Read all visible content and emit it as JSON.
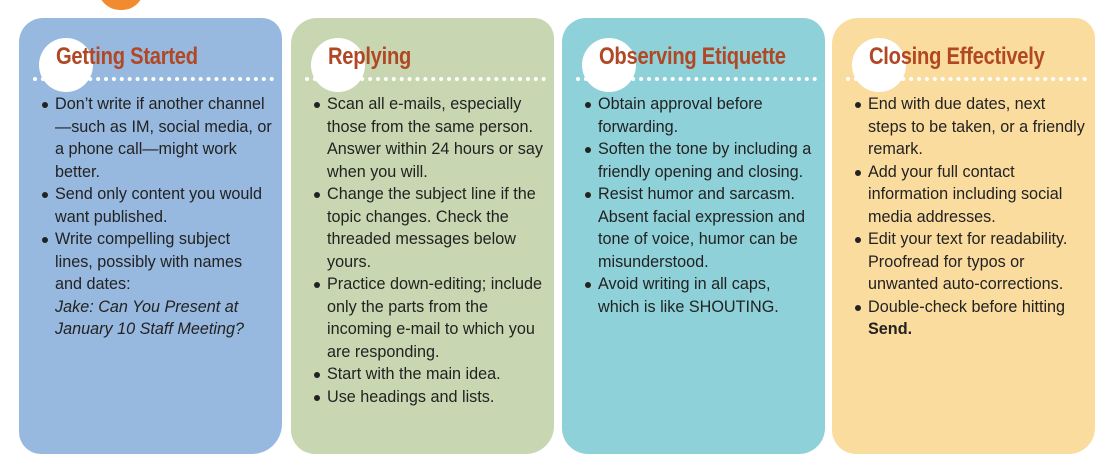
{
  "cards": [
    {
      "title": "Getting Started",
      "items": [
        {
          "text": "Don’t write if another channel—such as IM, social media, or a phone call—might work better."
        },
        {
          "text": "Send only content you would want published."
        },
        {
          "text": "Write compelling subject lines, possibly with names and dates:",
          "example": "Jake: Can You Present at January 10 Staff Meeting?"
        }
      ]
    },
    {
      "title": "Replying",
      "items": [
        {
          "text": "Scan all e-mails, especially those from the same person. Answer within 24 hours or say when you will."
        },
        {
          "text": "Change the subject line if the topic changes. Check the threaded messages below yours."
        },
        {
          "text": "Practice down-editing; include only the parts from the incoming e-mail to which you are responding."
        },
        {
          "text": "Start with the main idea."
        },
        {
          "text": "Use headings and lists."
        }
      ]
    },
    {
      "title": "Observing Etiquette",
      "items": [
        {
          "text": "Obtain approval before forwarding."
        },
        {
          "text": "Soften the tone by including a friendly opening and closing."
        },
        {
          "text": "Resist humor and sarcasm. Absent facial expression and tone of voice, humor can be misunderstood."
        },
        {
          "text": "Avoid writing in all caps, which is like SHOUTING."
        }
      ]
    },
    {
      "title": "Closing Effectively",
      "items": [
        {
          "text": "End with due dates, next steps to be taken, or a friendly remark."
        },
        {
          "text": "Add your full contact information including social media addresses."
        },
        {
          "text": "Edit your text for readability. Proofread for typos or unwanted auto-corrections."
        },
        {
          "text": "Double-check before hitting",
          "bold": "Send."
        }
      ]
    }
  ],
  "colors": {
    "title": "#b04825",
    "card_blue": "#98b9df",
    "card_green": "#c8d7b1",
    "card_teal": "#8fd1d9",
    "card_yellow": "#fbdc9f",
    "accent_orange": "#f28b30"
  }
}
